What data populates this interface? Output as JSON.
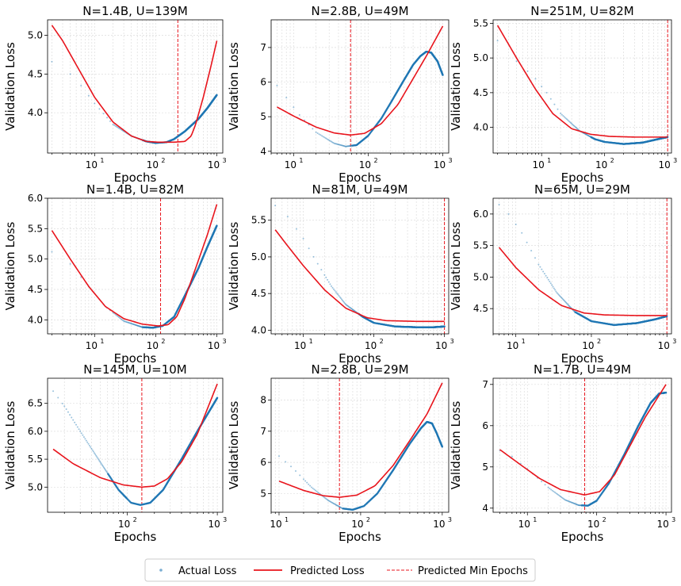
{
  "figure": {
    "legend": {
      "entries": [
        {
          "label": "Actual Loss",
          "style": "dots",
          "color": "#1f77b4"
        },
        {
          "label": "Predicted Loss",
          "style": "line",
          "color": "#e8141c"
        },
        {
          "label": "Predicted Min Epochs",
          "style": "dashed",
          "color": "#e8141c"
        }
      ]
    }
  },
  "chart_data": [
    {
      "type": "line",
      "title": "N=1.4B, U=139M",
      "xlabel": "Epochs",
      "ylabel": "Validation Loss",
      "xscale": "log",
      "xlim": [
        1.7,
        1250
      ],
      "ylim": [
        3.48,
        5.2
      ],
      "xticks": [
        {
          "v": 10,
          "label": "10",
          "exp": "1"
        },
        {
          "v": 100,
          "label": "10",
          "exp": "2"
        },
        {
          "v": 1000,
          "label": "10",
          "exp": "3"
        }
      ],
      "yticks": [
        4.0,
        4.5,
        5.0
      ],
      "ytick_format": "1",
      "min_epoch_line": 230,
      "actual": [
        [
          2,
          4.66
        ],
        [
          4,
          4.5
        ],
        [
          6,
          4.35
        ],
        [
          10,
          4.12
        ],
        [
          20,
          3.85
        ],
        [
          40,
          3.7
        ],
        [
          70,
          3.63
        ],
        [
          100,
          3.61
        ],
        [
          150,
          3.62
        ],
        [
          200,
          3.66
        ],
        [
          300,
          3.76
        ],
        [
          500,
          3.92
        ],
        [
          700,
          4.06
        ],
        [
          1000,
          4.23
        ]
      ],
      "predicted": [
        [
          2,
          5.13
        ],
        [
          3,
          4.93
        ],
        [
          5,
          4.62
        ],
        [
          10,
          4.2
        ],
        [
          20,
          3.88
        ],
        [
          40,
          3.7
        ],
        [
          70,
          3.63
        ],
        [
          110,
          3.62
        ],
        [
          200,
          3.62
        ],
        [
          300,
          3.63
        ],
        [
          380,
          3.7
        ],
        [
          450,
          3.85
        ],
        [
          600,
          4.2
        ],
        [
          800,
          4.6
        ],
        [
          1000,
          4.93
        ]
      ]
    },
    {
      "type": "line",
      "title": "N=2.8B, U=49M",
      "xlabel": "Epochs",
      "ylabel": "Validation Loss",
      "xscale": "log",
      "xlim": [
        5,
        1200
      ],
      "ylim": [
        3.95,
        7.8
      ],
      "xticks": [
        {
          "v": 10,
          "label": "10",
          "exp": "1"
        },
        {
          "v": 100,
          "label": "10",
          "exp": "2"
        },
        {
          "v": 1000,
          "label": "10",
          "exp": "3"
        }
      ],
      "yticks": [
        4,
        5,
        6,
        7
      ],
      "ytick_format": "0",
      "min_epoch_line": 58,
      "actual": [
        [
          6,
          5.9
        ],
        [
          8,
          5.55
        ],
        [
          12,
          5.05
        ],
        [
          20,
          4.55
        ],
        [
          35,
          4.23
        ],
        [
          50,
          4.14
        ],
        [
          70,
          4.18
        ],
        [
          100,
          4.45
        ],
        [
          150,
          4.95
        ],
        [
          200,
          5.4
        ],
        [
          300,
          6.05
        ],
        [
          400,
          6.5
        ],
        [
          500,
          6.75
        ],
        [
          600,
          6.88
        ],
        [
          700,
          6.85
        ],
        [
          850,
          6.6
        ],
        [
          1000,
          6.2
        ]
      ],
      "predicted": [
        [
          6,
          5.28
        ],
        [
          10,
          5.02
        ],
        [
          20,
          4.7
        ],
        [
          35,
          4.53
        ],
        [
          58,
          4.47
        ],
        [
          90,
          4.52
        ],
        [
          150,
          4.8
        ],
        [
          250,
          5.35
        ],
        [
          400,
          6.1
        ],
        [
          600,
          6.75
        ],
        [
          1000,
          7.62
        ]
      ]
    },
    {
      "type": "line",
      "title": "N=251M, U=82M",
      "xlabel": "Epochs",
      "ylabel": "Validation Loss",
      "xscale": "log",
      "xlim": [
        1.7,
        1150
      ],
      "ylim": [
        3.63,
        5.55
      ],
      "xticks": [
        {
          "v": 10,
          "label": "10",
          "exp": "1"
        },
        {
          "v": 100,
          "label": "10",
          "exp": "2"
        },
        {
          "v": 1000,
          "label": "10",
          "exp": "3"
        }
      ],
      "yticks": [
        4.0,
        4.5,
        5.0,
        5.5
      ],
      "ytick_format": "1",
      "min_epoch_line": 1000,
      "actual": [
        [
          2,
          5.25
        ],
        [
          3,
          5.05
        ],
        [
          5,
          4.88
        ],
        [
          8,
          4.7
        ],
        [
          12,
          4.5
        ],
        [
          20,
          4.2
        ],
        [
          40,
          3.95
        ],
        [
          70,
          3.83
        ],
        [
          100,
          3.79
        ],
        [
          200,
          3.76
        ],
        [
          400,
          3.78
        ],
        [
          700,
          3.83
        ],
        [
          1000,
          3.86
        ]
      ],
      "predicted": [
        [
          2,
          5.47
        ],
        [
          4,
          5.0
        ],
        [
          8,
          4.55
        ],
        [
          15,
          4.2
        ],
        [
          30,
          3.98
        ],
        [
          60,
          3.9
        ],
        [
          120,
          3.87
        ],
        [
          300,
          3.86
        ],
        [
          1000,
          3.86
        ]
      ]
    },
    {
      "type": "line",
      "title": "N=1.4B, U=82M",
      "xlabel": "Epochs",
      "ylabel": "Validation Loss",
      "xscale": "log",
      "xlim": [
        1.7,
        1250
      ],
      "ylim": [
        3.77,
        6.0
      ],
      "xticks": [
        {
          "v": 10,
          "label": "10",
          "exp": "1"
        },
        {
          "v": 100,
          "label": "10",
          "exp": "2"
        },
        {
          "v": 1000,
          "label": "10",
          "exp": "3"
        }
      ],
      "yticks": [
        4.0,
        4.5,
        5.0,
        5.5,
        6.0
      ],
      "ytick_format": "1",
      "min_epoch_line": 120,
      "actual": [
        [
          2,
          5.12
        ],
        [
          4,
          4.92
        ],
        [
          8,
          4.55
        ],
        [
          15,
          4.22
        ],
        [
          30,
          3.98
        ],
        [
          60,
          3.88
        ],
        [
          90,
          3.87
        ],
        [
          130,
          3.9
        ],
        [
          200,
          4.05
        ],
        [
          300,
          4.4
        ],
        [
          500,
          4.85
        ],
        [
          700,
          5.2
        ],
        [
          1000,
          5.55
        ]
      ],
      "predicted": [
        [
          2,
          5.47
        ],
        [
          4,
          5.0
        ],
        [
          8,
          4.55
        ],
        [
          15,
          4.22
        ],
        [
          30,
          4.02
        ],
        [
          60,
          3.93
        ],
        [
          110,
          3.9
        ],
        [
          160,
          3.92
        ],
        [
          220,
          4.05
        ],
        [
          300,
          4.35
        ],
        [
          450,
          4.85
        ],
        [
          700,
          5.4
        ],
        [
          1000,
          5.9
        ]
      ]
    },
    {
      "type": "line",
      "title": "N=81M, U=49M",
      "xlabel": "Epochs",
      "ylabel": "Validation Loss",
      "xscale": "log",
      "xlim": [
        3.5,
        1150
      ],
      "ylim": [
        3.95,
        5.8
      ],
      "xticks": [
        {
          "v": 10,
          "label": "10",
          "exp": "1"
        },
        {
          "v": 100,
          "label": "10",
          "exp": "2"
        },
        {
          "v": 1000,
          "label": "10",
          "exp": "3"
        }
      ],
      "yticks": [
        4.0,
        4.5,
        5.0,
        5.5
      ],
      "ytick_format": "1",
      "min_epoch_line": 1000,
      "actual": [
        [
          4,
          5.7
        ],
        [
          6,
          5.55
        ],
        [
          10,
          5.25
        ],
        [
          15,
          4.95
        ],
        [
          25,
          4.6
        ],
        [
          40,
          4.35
        ],
        [
          70,
          4.18
        ],
        [
          100,
          4.1
        ],
        [
          200,
          4.05
        ],
        [
          400,
          4.04
        ],
        [
          700,
          4.04
        ],
        [
          1000,
          4.05
        ]
      ],
      "predicted": [
        [
          4,
          5.37
        ],
        [
          6,
          5.15
        ],
        [
          10,
          4.88
        ],
        [
          20,
          4.55
        ],
        [
          40,
          4.3
        ],
        [
          80,
          4.17
        ],
        [
          150,
          4.13
        ],
        [
          400,
          4.12
        ],
        [
          1000,
          4.12
        ]
      ]
    },
    {
      "type": "line",
      "title": "N=65M, U=29M",
      "xlabel": "Epochs",
      "ylabel": "Validation Loss",
      "xscale": "log",
      "xlim": [
        5,
        1150
      ],
      "ylim": [
        4.1,
        6.25
      ],
      "xticks": [
        {
          "v": 10,
          "label": "10",
          "exp": "1"
        },
        {
          "v": 100,
          "label": "10",
          "exp": "2"
        },
        {
          "v": 1000,
          "label": "10",
          "exp": "3"
        }
      ],
      "yticks": [
        4.5,
        5.0,
        5.5,
        6.0
      ],
      "ytick_format": "1",
      "min_epoch_line": 1000,
      "actual": [
        [
          6,
          6.15
        ],
        [
          8,
          6.0
        ],
        [
          12,
          5.7
        ],
        [
          20,
          5.2
        ],
        [
          35,
          4.75
        ],
        [
          60,
          4.45
        ],
        [
          100,
          4.3
        ],
        [
          200,
          4.24
        ],
        [
          400,
          4.27
        ],
        [
          700,
          4.33
        ],
        [
          1000,
          4.38
        ]
      ],
      "predicted": [
        [
          6,
          5.47
        ],
        [
          10,
          5.15
        ],
        [
          20,
          4.8
        ],
        [
          40,
          4.55
        ],
        [
          80,
          4.43
        ],
        [
          150,
          4.4
        ],
        [
          400,
          4.39
        ],
        [
          1000,
          4.39
        ]
      ]
    },
    {
      "type": "line",
      "title": "N=145M, U=10M",
      "xlabel": "Epochs",
      "ylabel": "Validation Loss",
      "xscale": "log",
      "xlim": [
        13,
        1150
      ],
      "ylim": [
        4.55,
        6.95
      ],
      "xticks": [
        {
          "v": 100,
          "label": "10",
          "exp": "2"
        },
        {
          "v": 1000,
          "label": "10",
          "exp": "3"
        }
      ],
      "yticks": [
        5.0,
        5.5,
        6.0,
        6.5
      ],
      "ytick_format": "1",
      "min_epoch_line": 145,
      "actual": [
        [
          15,
          6.72
        ],
        [
          20,
          6.45
        ],
        [
          30,
          6.0
        ],
        [
          50,
          5.45
        ],
        [
          80,
          4.95
        ],
        [
          110,
          4.72
        ],
        [
          140,
          4.68
        ],
        [
          180,
          4.72
        ],
        [
          250,
          4.95
        ],
        [
          400,
          5.5
        ],
        [
          600,
          6.0
        ],
        [
          1000,
          6.6
        ]
      ],
      "predicted": [
        [
          15,
          5.68
        ],
        [
          25,
          5.42
        ],
        [
          50,
          5.17
        ],
        [
          90,
          5.04
        ],
        [
          145,
          5.0
        ],
        [
          200,
          5.02
        ],
        [
          280,
          5.15
        ],
        [
          400,
          5.45
        ],
        [
          600,
          5.95
        ],
        [
          1000,
          6.85
        ]
      ]
    },
    {
      "type": "line",
      "title": "N=2.8B, U=29M",
      "xlabel": "Epochs",
      "ylabel": "Validation Loss",
      "xscale": "log",
      "xlim": [
        8,
        1200
      ],
      "ylim": [
        4.4,
        8.7
      ],
      "xticks": [
        {
          "v": 10,
          "label": "10",
          "exp": "1"
        },
        {
          "v": 100,
          "label": "10",
          "exp": "2"
        },
        {
          "v": 1000,
          "label": "10",
          "exp": "3"
        }
      ],
      "yticks": [
        5,
        6,
        7,
        8
      ],
      "ytick_format": "0",
      "min_epoch_line": 55,
      "actual": [
        [
          10,
          6.2
        ],
        [
          15,
          5.8
        ],
        [
          25,
          5.2
        ],
        [
          40,
          4.78
        ],
        [
          60,
          4.52
        ],
        [
          80,
          4.48
        ],
        [
          110,
          4.6
        ],
        [
          160,
          5.0
        ],
        [
          250,
          5.75
        ],
        [
          400,
          6.6
        ],
        [
          550,
          7.1
        ],
        [
          650,
          7.3
        ],
        [
          750,
          7.25
        ],
        [
          850,
          6.95
        ],
        [
          1000,
          6.5
        ]
      ],
      "predicted": [
        [
          10,
          5.4
        ],
        [
          20,
          5.1
        ],
        [
          35,
          4.93
        ],
        [
          55,
          4.88
        ],
        [
          90,
          4.95
        ],
        [
          150,
          5.25
        ],
        [
          250,
          5.9
        ],
        [
          400,
          6.7
        ],
        [
          650,
          7.55
        ],
        [
          1000,
          8.55
        ]
      ]
    },
    {
      "type": "line",
      "title": "N=1.7B, U=49M",
      "xlabel": "Epochs",
      "ylabel": "Validation Loss",
      "xscale": "log",
      "xlim": [
        3.2,
        1200
      ],
      "ylim": [
        3.9,
        7.15
      ],
      "xticks": [
        {
          "v": 10,
          "label": "10",
          "exp": "1"
        },
        {
          "v": 100,
          "label": "10",
          "exp": "2"
        },
        {
          "v": 1000,
          "label": "10",
          "exp": "3"
        }
      ],
      "yticks": [
        4,
        5,
        6,
        7
      ],
      "ytick_format": "0",
      "min_epoch_line": 67,
      "actual": [
        [
          4,
          5.4
        ],
        [
          6,
          5.25
        ],
        [
          10,
          4.95
        ],
        [
          20,
          4.5
        ],
        [
          35,
          4.2
        ],
        [
          55,
          4.07
        ],
        [
          75,
          4.06
        ],
        [
          100,
          4.18
        ],
        [
          150,
          4.6
        ],
        [
          250,
          5.3
        ],
        [
          400,
          6.0
        ],
        [
          600,
          6.55
        ],
        [
          800,
          6.78
        ],
        [
          1000,
          6.8
        ]
      ],
      "predicted": [
        [
          4,
          5.42
        ],
        [
          8,
          5.05
        ],
        [
          15,
          4.72
        ],
        [
          30,
          4.45
        ],
        [
          67,
          4.32
        ],
        [
          110,
          4.4
        ],
        [
          180,
          4.8
        ],
        [
          300,
          5.5
        ],
        [
          500,
          6.2
        ],
        [
          1000,
          7.0
        ]
      ]
    }
  ]
}
